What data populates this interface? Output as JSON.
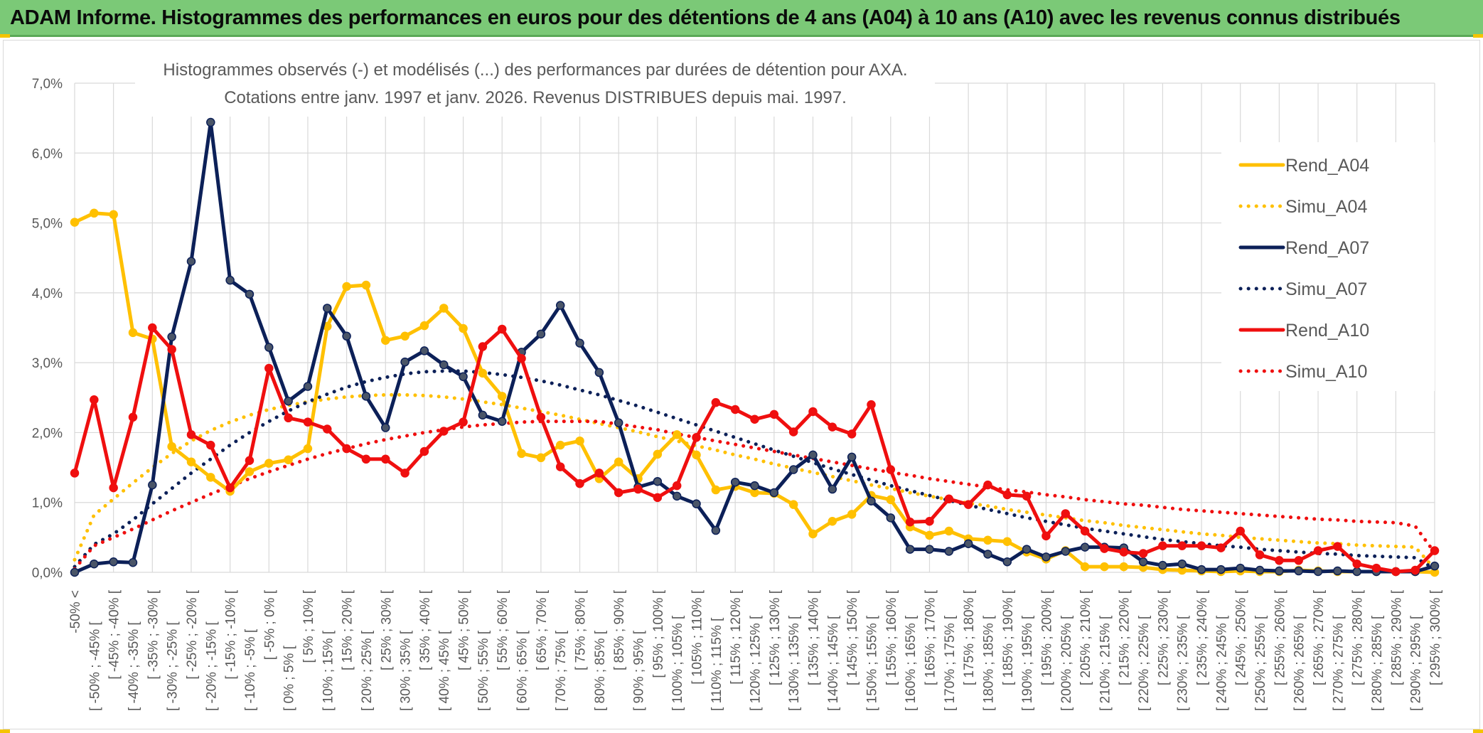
{
  "banner": {
    "title": "ADAM Informe. Histogrammes des performances en euros pour des détentions de 4 ans (A04) à 10 ans (A10) avec les revenus connus distribués"
  },
  "colors": {
    "banner_bg": "#7bc977",
    "accent_corner": "#f5c400",
    "A04": "#ffc000",
    "A07": "#0c2058",
    "A10": "#ef0f0f",
    "grid": "#d9d9d9",
    "text": "#595959"
  },
  "chart_data": {
    "type": "line",
    "title": [
      "Histogrammes observés (-) et modélisés (...) des performances par durées de détention pour AXA.",
      "Cotations entre janv. 1997 et janv. 2026. Revenus DISTRIBUES depuis mai. 1997."
    ],
    "xlabel": "",
    "ylabel": "",
    "ylim": [
      0,
      7
    ],
    "y_ticks": [
      "0,0%",
      "1,0%",
      "2,0%",
      "3,0%",
      "4,0%",
      "5,0%",
      "6,0%",
      "7,0%"
    ],
    "grid": true,
    "legend_position": "right",
    "categories": [
      "-50% <",
      "[ -50% ; -45% [",
      "[ -45% ; -40% [",
      "[ -40% ; -35% [",
      "[ -35% ; -30% [",
      "[ -30% ; -25% [",
      "[ -25% ; -20% [",
      "[ -20% ; -15% [",
      "[ -15% ; -10% [",
      "[ -10% ; -5% [",
      "[ -5% ; 0% [",
      "[ 0% ; 5% [",
      "[ 5% ; 10% [",
      "[ 10% ; 15% [",
      "[ 15% ; 20% [",
      "[ 20% ; 25% [",
      "[ 25% ; 30% [",
      "[ 30% ; 35% [",
      "[ 35% ; 40% [",
      "[ 40% ; 45% [",
      "[ 45% ; 50% [",
      "[ 50% ; 55% [",
      "[ 55% ; 60% [",
      "[ 60% ; 65% [",
      "[ 65% ; 70% [",
      "[ 70% ; 75% [",
      "[ 75% ; 80% [",
      "[ 80% ; 85% [",
      "[ 85% ; 90% [",
      "[ 90% ; 95% [",
      "[ 95% ; 100% [",
      "[ 100% ; 105% [",
      "[ 105% ; 110% [",
      "[ 110% ; 115% [",
      "[ 115% ; 120% [",
      "[ 120% ; 125% [",
      "[ 125% ; 130% [",
      "[ 130% ; 135% [",
      "[ 135% ; 140% [",
      "[ 140% ; 145% [",
      "[ 145% ; 150% [",
      "[ 150% ; 155% [",
      "[ 155% ; 160% [",
      "[ 160% ; 165% [",
      "[ 165% ; 170% [",
      "[ 170% ; 175% [",
      "[ 175% ; 180% [",
      "[ 180% ; 185% [",
      "[ 185% ; 190% [",
      "[ 190% ; 195% [",
      "[ 195% ; 200% [",
      "[ 200% ; 205% [",
      "[ 205% ; 210% [",
      "[ 210% ; 215% [",
      "[ 215% ; 220% [",
      "[ 220% ; 225% [",
      "[ 225% ; 230% [",
      "[ 230% ; 235% [",
      "[ 235% ; 240% [",
      "[ 240% ; 245% [",
      "[ 245% ; 250% [",
      "[ 250% ; 255% [",
      "[ 255% ; 260% [",
      "[ 260% ; 265% [",
      "[ 265% ; 270% [",
      "[ 270% ; 275% [",
      "[ 275% ; 280% [",
      "[ 280% ; 285% [",
      "[ 285% ; 290% [",
      "[ 290% ; 295% [",
      "[ 295% ; 300% ["
    ],
    "series": [
      {
        "name": "Rend_A04",
        "style": "solid",
        "color": "#ffc000",
        "markers": true,
        "values": [
          5.01,
          5.14,
          5.12,
          3.43,
          3.34,
          1.8,
          1.58,
          1.36,
          1.16,
          1.44,
          1.56,
          1.61,
          1.77,
          3.52,
          4.09,
          4.11,
          3.32,
          3.38,
          3.53,
          3.78,
          3.49,
          2.85,
          2.52,
          1.7,
          1.64,
          1.82,
          1.88,
          1.34,
          1.58,
          1.34,
          1.69,
          1.97,
          1.68,
          1.18,
          1.23,
          1.14,
          1.13,
          0.97,
          0.55,
          0.73,
          0.83,
          1.1,
          1.04,
          0.65,
          0.53,
          0.59,
          0.48,
          0.46,
          0.44,
          0.29,
          0.19,
          0.31,
          0.08,
          0.08,
          0.08,
          0.07,
          0.04,
          0.03,
          0.02,
          0.01,
          0.02,
          0.01,
          0.01,
          0.03,
          0.02,
          0.01,
          0.01,
          0.01,
          0.01,
          0.01,
          0.0
        ]
      },
      {
        "name": "Simu_A04",
        "style": "dotted",
        "color": "#ffc000",
        "markers": false,
        "values": [
          0.18,
          0.82,
          1.05,
          1.28,
          1.5,
          1.7,
          1.88,
          2.03,
          2.15,
          2.25,
          2.33,
          2.39,
          2.44,
          2.48,
          2.51,
          2.53,
          2.54,
          2.54,
          2.53,
          2.51,
          2.48,
          2.44,
          2.4,
          2.35,
          2.3,
          2.25,
          2.19,
          2.13,
          2.07,
          2.01,
          1.94,
          1.88,
          1.81,
          1.75,
          1.68,
          1.62,
          1.55,
          1.49,
          1.43,
          1.37,
          1.31,
          1.25,
          1.2,
          1.14,
          1.09,
          1.04,
          0.99,
          0.95,
          0.9,
          0.86,
          0.82,
          0.78,
          0.74,
          0.71,
          0.67,
          0.64,
          0.61,
          0.58,
          0.55,
          0.53,
          0.5,
          0.48,
          0.46,
          0.44,
          0.42,
          0.41,
          0.39,
          0.38,
          0.37,
          0.36,
          0.05
        ]
      },
      {
        "name": "Rend_A07",
        "style": "solid",
        "color": "#0c2058",
        "markers": true,
        "values": [
          0.0,
          0.12,
          0.15,
          0.14,
          1.25,
          3.37,
          4.45,
          6.44,
          4.18,
          3.98,
          3.22,
          2.45,
          2.66,
          3.78,
          3.38,
          2.52,
          2.07,
          3.01,
          3.17,
          2.97,
          2.8,
          2.25,
          2.16,
          3.15,
          3.41,
          3.82,
          3.28,
          2.86,
          2.14,
          1.22,
          1.3,
          1.09,
          0.98,
          0.6,
          1.29,
          1.24,
          1.14,
          1.47,
          1.68,
          1.19,
          1.65,
          1.02,
          0.78,
          0.33,
          0.33,
          0.3,
          0.41,
          0.26,
          0.15,
          0.33,
          0.22,
          0.3,
          0.36,
          0.36,
          0.35,
          0.15,
          0.1,
          0.12,
          0.04,
          0.04,
          0.06,
          0.03,
          0.02,
          0.02,
          0.01,
          0.02,
          0.01,
          0.01,
          0.01,
          0.01,
          0.09
        ]
      },
      {
        "name": "Simu_A07",
        "style": "dotted",
        "color": "#0c2058",
        "markers": false,
        "values": [
          0.08,
          0.4,
          0.55,
          0.75,
          0.98,
          1.2,
          1.42,
          1.62,
          1.82,
          2.0,
          2.16,
          2.31,
          2.44,
          2.55,
          2.65,
          2.73,
          2.79,
          2.84,
          2.87,
          2.88,
          2.88,
          2.86,
          2.83,
          2.79,
          2.74,
          2.68,
          2.61,
          2.54,
          2.46,
          2.38,
          2.29,
          2.2,
          2.11,
          2.02,
          1.93,
          1.84,
          1.75,
          1.66,
          1.57,
          1.48,
          1.4,
          1.32,
          1.24,
          1.17,
          1.1,
          1.03,
          0.96,
          0.9,
          0.84,
          0.78,
          0.73,
          0.68,
          0.63,
          0.59,
          0.55,
          0.51,
          0.47,
          0.44,
          0.41,
          0.38,
          0.36,
          0.33,
          0.31,
          0.29,
          0.27,
          0.26,
          0.24,
          0.23,
          0.22,
          0.21,
          0.05
        ]
      },
      {
        "name": "Rend_A10",
        "style": "solid",
        "color": "#ef0f0f",
        "markers": true,
        "values": [
          1.42,
          2.47,
          1.21,
          2.22,
          3.5,
          3.19,
          1.97,
          1.82,
          1.21,
          1.6,
          2.92,
          2.21,
          2.15,
          2.05,
          1.77,
          1.62,
          1.62,
          1.42,
          1.73,
          2.02,
          2.15,
          3.23,
          3.48,
          3.06,
          2.22,
          1.51,
          1.27,
          1.42,
          1.14,
          1.19,
          1.07,
          1.24,
          1.93,
          2.43,
          2.33,
          2.19,
          2.26,
          2.01,
          2.3,
          2.08,
          1.98,
          2.4,
          1.47,
          0.72,
          0.73,
          1.05,
          0.97,
          1.25,
          1.11,
          1.09,
          0.52,
          0.84,
          0.59,
          0.34,
          0.29,
          0.27,
          0.38,
          0.38,
          0.38,
          0.35,
          0.59,
          0.25,
          0.17,
          0.17,
          0.31,
          0.37,
          0.12,
          0.06,
          0.01,
          0.03,
          0.31
        ]
      },
      {
        "name": "Simu_A10",
        "style": "dotted",
        "color": "#ef0f0f",
        "markers": false,
        "values": [
          0.05,
          0.38,
          0.5,
          0.62,
          0.75,
          0.88,
          1.0,
          1.12,
          1.23,
          1.34,
          1.44,
          1.53,
          1.62,
          1.7,
          1.77,
          1.84,
          1.9,
          1.95,
          2.0,
          2.04,
          2.08,
          2.11,
          2.13,
          2.15,
          2.16,
          2.16,
          2.16,
          2.16,
          2.12,
          2.08,
          2.04,
          1.98,
          1.93,
          1.88,
          1.83,
          1.78,
          1.73,
          1.68,
          1.63,
          1.58,
          1.53,
          1.48,
          1.43,
          1.39,
          1.34,
          1.3,
          1.26,
          1.22,
          1.18,
          1.15,
          1.11,
          1.08,
          1.04,
          1.01,
          0.98,
          0.96,
          0.93,
          0.9,
          0.88,
          0.86,
          0.84,
          0.82,
          0.8,
          0.78,
          0.76,
          0.75,
          0.73,
          0.72,
          0.71,
          0.66,
          0.28
        ]
      }
    ]
  }
}
